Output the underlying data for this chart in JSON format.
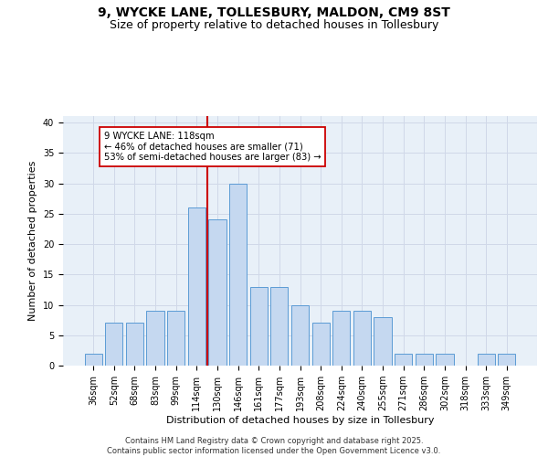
{
  "title_line1": "9, WYCKE LANE, TOLLESBURY, MALDON, CM9 8ST",
  "title_line2": "Size of property relative to detached houses in Tollesbury",
  "xlabel": "Distribution of detached houses by size in Tollesbury",
  "ylabel": "Number of detached properties",
  "categories": [
    "36sqm",
    "52sqm",
    "68sqm",
    "83sqm",
    "99sqm",
    "114sqm",
    "130sqm",
    "146sqm",
    "161sqm",
    "177sqm",
    "193sqm",
    "208sqm",
    "224sqm",
    "240sqm",
    "255sqm",
    "271sqm",
    "286sqm",
    "302sqm",
    "318sqm",
    "333sqm",
    "349sqm"
  ],
  "values": [
    2,
    7,
    7,
    9,
    9,
    26,
    24,
    30,
    13,
    13,
    10,
    7,
    9,
    9,
    8,
    2,
    2,
    2,
    0,
    2,
    2
  ],
  "bar_color": "#c5d8f0",
  "bar_edge_color": "#5b9bd5",
  "grid_color": "#d0d8e8",
  "background_color": "#e8f0f8",
  "vline_color": "#cc0000",
  "vline_pos": 5.5,
  "annotation_text": "9 WYCKE LANE: 118sqm\n← 46% of detached houses are smaller (71)\n53% of semi-detached houses are larger (83) →",
  "ylim": [
    0,
    41
  ],
  "yticks": [
    0,
    5,
    10,
    15,
    20,
    25,
    30,
    35,
    40
  ],
  "footer_text": "Contains HM Land Registry data © Crown copyright and database right 2025.\nContains public sector information licensed under the Open Government Licence v3.0.",
  "title_fontsize": 10,
  "subtitle_fontsize": 9,
  "axis_label_fontsize": 8,
  "tick_fontsize": 7
}
